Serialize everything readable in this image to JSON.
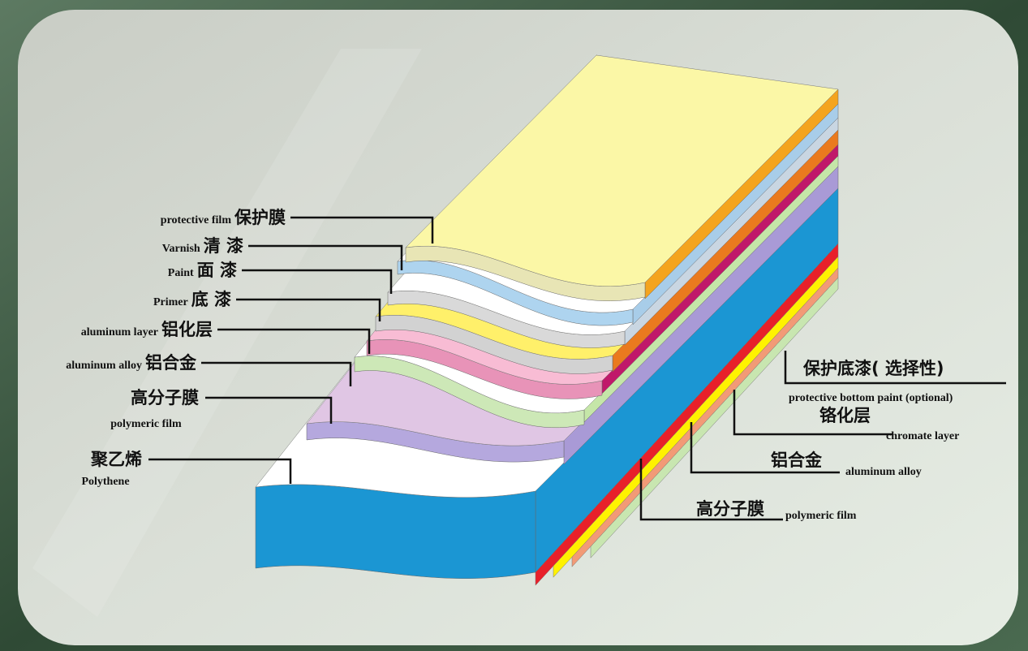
{
  "left_labels": [
    {
      "en": "protective film",
      "zh": "保护膜"
    },
    {
      "en": "Varnish",
      "zh": "清 漆"
    },
    {
      "en": "Paint",
      "zh": "面 漆"
    },
    {
      "en": "Primer",
      "zh": "底 漆"
    },
    {
      "en": "aluminum layer",
      "zh": "铝化层"
    },
    {
      "en": "aluminum alloy",
      "zh": "铝合金"
    },
    {
      "zh": "高分子膜",
      "en": "polymeric film"
    },
    {
      "zh": "聚乙烯",
      "en": "Polythene"
    }
  ],
  "right_labels": [
    {
      "zh": "保护底漆( 选择性)",
      "en": "protective bottom paint (optional)"
    },
    {
      "zh": "铬化层",
      "en": "chromate layer"
    },
    {
      "zh": "铝合金",
      "en": "aluminum alloy"
    },
    {
      "zh": "高分子膜",
      "en": "polymeric film"
    }
  ]
}
